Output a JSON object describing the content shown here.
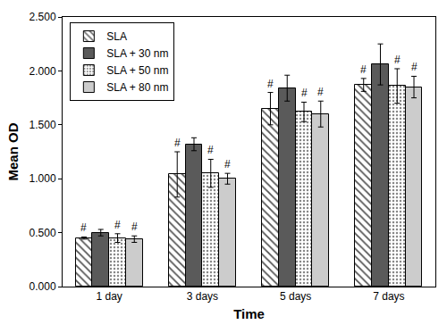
{
  "chart_data": {
    "type": "bar",
    "x_label": "Time",
    "y_label": "Mean OD",
    "categories": [
      "1 day",
      "3 days",
      "5 days",
      "7 days"
    ],
    "series": [
      {
        "name": "SLA",
        "color": "#e6e6e6",
        "marker": "hatch",
        "values": [
          0.45,
          1.04,
          1.65,
          1.87
        ],
        "errors": [
          0.01,
          0.21,
          0.15,
          0.06
        ],
        "annotations": [
          "#",
          "#",
          "#",
          "#"
        ]
      },
      {
        "name": "SLA + 30 nm",
        "color": "#5a5a5a",
        "marker": "solid",
        "values": [
          0.5,
          1.32,
          1.84,
          2.06
        ],
        "errors": [
          0.03,
          0.06,
          0.12,
          0.19
        ]
      },
      {
        "name": "SLA + 50 nm",
        "color": "#d4d4d4",
        "marker": "dots",
        "values": [
          0.45,
          1.05,
          1.62,
          1.86
        ],
        "errors": [
          0.04,
          0.13,
          0.09,
          0.16
        ],
        "annotations": [
          "#",
          "#",
          "#",
          "#"
        ]
      },
      {
        "name": "SLA + 80 nm",
        "color": "#cccccc",
        "marker": "solid",
        "values": [
          0.44,
          1.0,
          1.6,
          1.85
        ],
        "errors": [
          0.03,
          0.05,
          0.12,
          0.1
        ],
        "annotations": [
          "#",
          "#",
          "#",
          "#"
        ]
      }
    ],
    "ylim": [
      0,
      2.5
    ],
    "yticks": [
      {
        "value": 0,
        "label": "0.000"
      },
      {
        "value": 0.5,
        "label": "0.500"
      },
      {
        "value": 1,
        "label": "1.000"
      },
      {
        "value": 1.5,
        "label": "1.500"
      },
      {
        "value": 2,
        "label": "2.000"
      },
      {
        "value": 2.5,
        "label": "2.500"
      }
    ],
    "grid": false,
    "legend": "upper left"
  }
}
